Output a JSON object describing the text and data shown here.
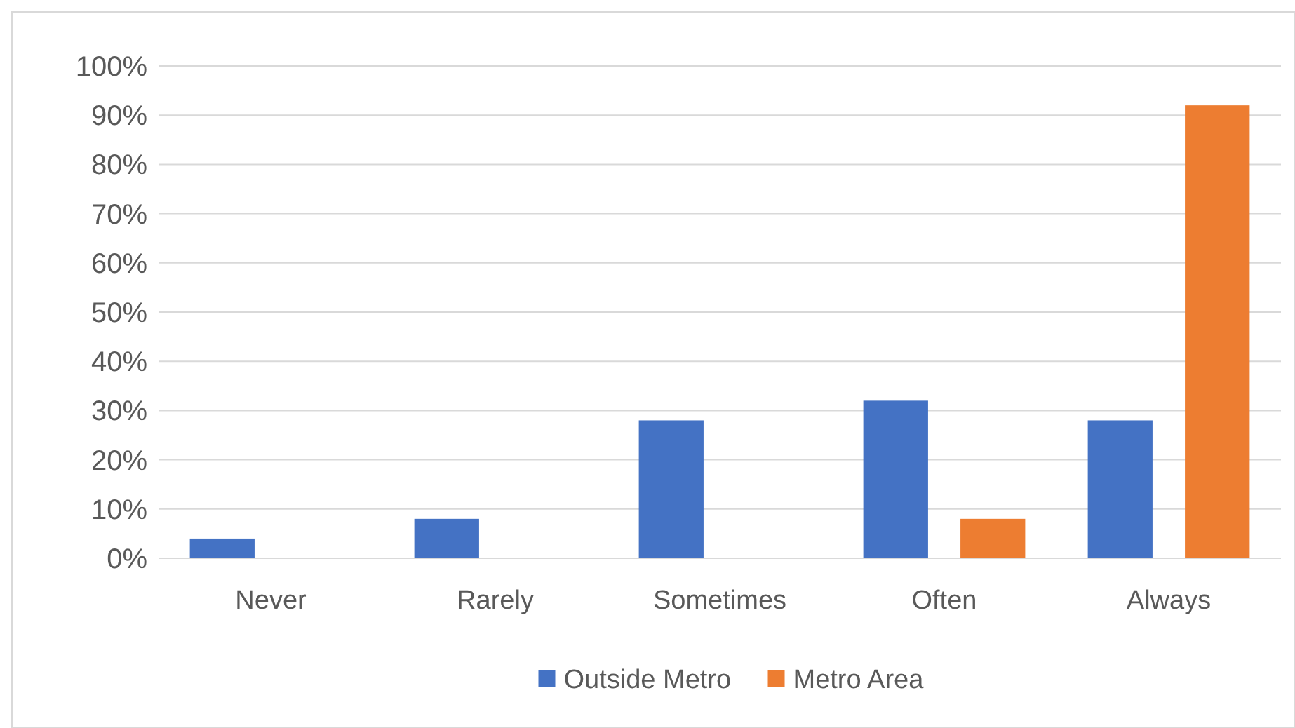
{
  "chart_data": {
    "type": "bar",
    "categories": [
      "Never",
      "Rarely",
      "Sometimes",
      "Often",
      "Always"
    ],
    "series": [
      {
        "name": "Outside Metro",
        "color": "#4472c4",
        "values": [
          4,
          8,
          28,
          32,
          28
        ]
      },
      {
        "name": "Metro Area",
        "color": "#ed7d31",
        "values": [
          0,
          0,
          0,
          8,
          92
        ]
      }
    ],
    "ylim": [
      0,
      100
    ],
    "yticks": [
      {
        "value": 0,
        "label": "0%"
      },
      {
        "value": 10,
        "label": "10%"
      },
      {
        "value": 20,
        "label": "20%"
      },
      {
        "value": 30,
        "label": "30%"
      },
      {
        "value": 40,
        "label": "40%"
      },
      {
        "value": 50,
        "label": "50%"
      },
      {
        "value": 60,
        "label": "60%"
      },
      {
        "value": 70,
        "label": "70%"
      },
      {
        "value": 80,
        "label": "80%"
      },
      {
        "value": 90,
        "label": "90%"
      },
      {
        "value": 100,
        "label": "100%"
      }
    ],
    "grid": "y",
    "legend": "bottom"
  }
}
